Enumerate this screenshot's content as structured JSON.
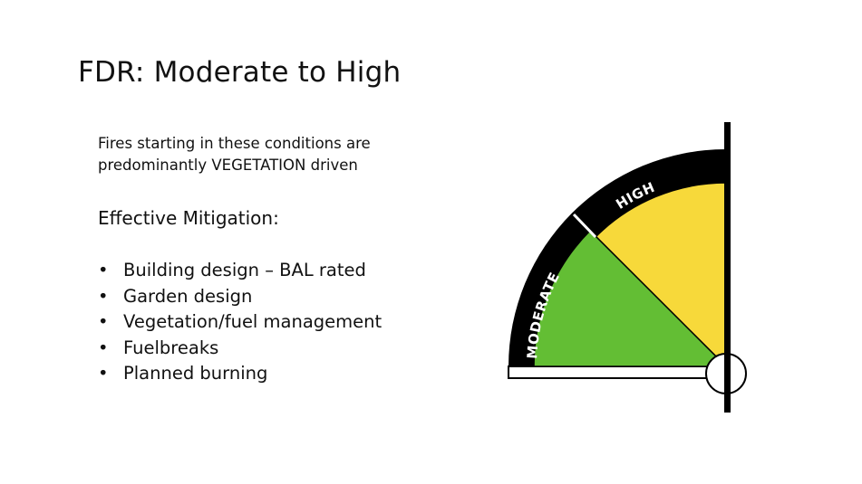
{
  "title": "FDR: Moderate to High",
  "intro": [
    "Fires starting in these conditions are",
    "predominantly VEGETATION driven"
  ],
  "subheading": "Effective Mitigation:",
  "bullets": [
    "Building design – BAL rated",
    "Garden design",
    "Vegetation/fuel management",
    "Fuelbreaks",
    "Planned burning"
  ],
  "gauge": {
    "labels": {
      "moderate": "MODERATE",
      "high": "HIGH"
    },
    "colors": {
      "moderate": "#63be34",
      "high": "#f7d93a",
      "band": "#000000"
    }
  }
}
